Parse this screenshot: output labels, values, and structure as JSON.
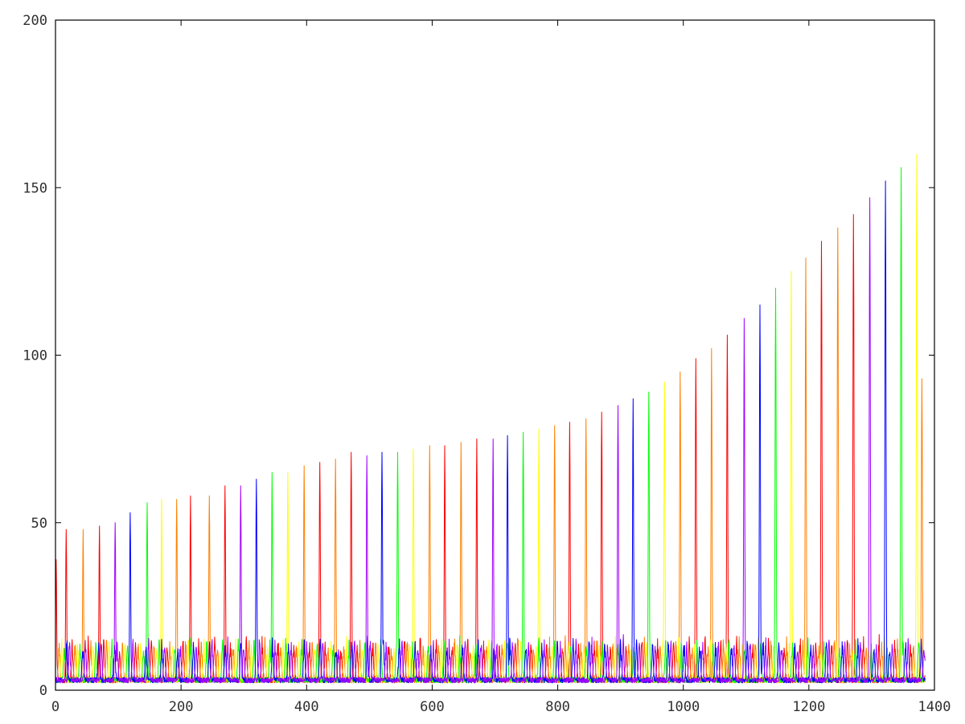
{
  "chart_data": {
    "type": "line",
    "title": "",
    "xlabel": "",
    "ylabel": "",
    "xlim": [
      0,
      1400
    ],
    "ylim": [
      0,
      200
    ],
    "x_ticks": [
      0,
      200,
      400,
      600,
      800,
      1000,
      1200,
      1400
    ],
    "y_ticks": [
      0,
      50,
      100,
      150,
      200
    ],
    "x_tick_labels": [
      "0",
      "200",
      "400",
      "600",
      "800",
      "1000",
      "1200",
      "1400"
    ],
    "y_tick_labels": [
      "0",
      "50",
      "100",
      "150",
      "200"
    ],
    "grid": false,
    "legend": "none",
    "baseline_range": [
      1,
      18
    ],
    "cycle_period_x": 25.2,
    "colors": [
      "#ff0000",
      "#ff8000",
      "#ffff00",
      "#00ff00",
      "#0000ff",
      "#a000ff"
    ],
    "series": [
      {
        "color": "#ff0000",
        "peaks": [
          [
            1,
            39
          ],
          [
            17,
            48
          ],
          [
            70,
            49
          ],
          [
            215,
            58
          ],
          [
            270,
            61
          ],
          [
            421,
            68
          ],
          [
            471,
            71
          ],
          [
            620,
            73
          ],
          [
            671,
            75
          ],
          [
            819,
            80
          ],
          [
            870,
            83
          ],
          [
            1020,
            99
          ],
          [
            1070,
            106
          ],
          [
            1220,
            134
          ],
          [
            1271,
            142
          ]
        ]
      },
      {
        "color": "#ff8000",
        "peaks": [
          [
            44,
            48
          ],
          [
            193,
            57
          ],
          [
            245,
            58
          ],
          [
            396,
            67
          ],
          [
            446,
            69
          ],
          [
            596,
            73
          ],
          [
            646,
            74
          ],
          [
            795,
            79
          ],
          [
            845,
            81
          ],
          [
            995,
            95
          ],
          [
            1045,
            102
          ],
          [
            1195,
            129
          ],
          [
            1246,
            138
          ],
          [
            1380,
            93
          ]
        ]
      },
      {
        "color": "#ffff00",
        "peaks": [
          [
            169,
            57
          ],
          [
            370,
            65
          ],
          [
            570,
            72
          ],
          [
            770,
            78
          ],
          [
            970,
            92
          ],
          [
            1172,
            125
          ],
          [
            1372,
            160
          ]
        ]
      },
      {
        "color": "#00ff00",
        "peaks": [
          [
            146,
            56
          ],
          [
            345,
            65
          ],
          [
            545,
            71
          ],
          [
            745,
            77
          ],
          [
            945,
            89
          ],
          [
            1147,
            120
          ],
          [
            1347,
            156
          ]
        ]
      },
      {
        "color": "#0000ff",
        "peaks": [
          [
            119,
            53
          ],
          [
            320,
            63
          ],
          [
            520,
            71
          ],
          [
            720,
            76
          ],
          [
            920,
            87
          ],
          [
            1122,
            115
          ],
          [
            1322,
            152
          ]
        ]
      },
      {
        "color": "#a000ff",
        "peaks": [
          [
            95,
            50
          ],
          [
            295,
            61
          ],
          [
            496,
            70
          ],
          [
            697,
            75
          ],
          [
            896,
            85
          ],
          [
            1097,
            111
          ],
          [
            1297,
            147
          ]
        ]
      }
    ]
  }
}
